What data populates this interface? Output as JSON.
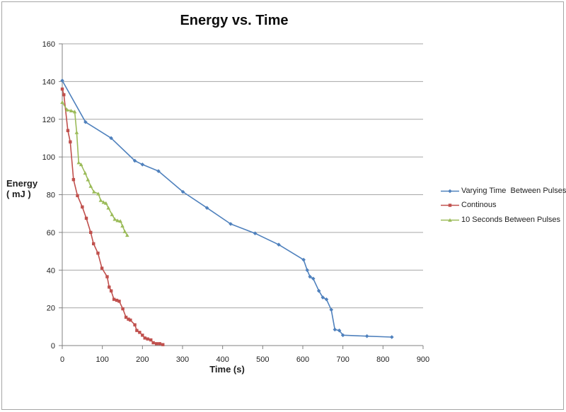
{
  "chart_data": {
    "type": "line",
    "title": "Energy vs. Time",
    "xlabel": "Time (s)",
    "ylabel": "Energy ( mJ )",
    "ylabel_lines": [
      "Energy",
      "( mJ )"
    ],
    "xlim": [
      0,
      900
    ],
    "ylim": [
      0,
      160
    ],
    "xticks": [
      0,
      100,
      200,
      300,
      400,
      500,
      600,
      700,
      800,
      900
    ],
    "yticks": [
      0,
      20,
      40,
      60,
      80,
      100,
      120,
      140,
      160
    ],
    "grid": "horizontal",
    "grid_color": "#A6A6A6",
    "axis_color": "#808080",
    "background": "#FFFFFF",
    "legend_position": "right",
    "series": [
      {
        "name": "Varying Time  Between Pulses",
        "color": "#4F81BD",
        "marker": "diamond",
        "points": [
          [
            0,
            140.5
          ],
          [
            58,
            118.5
          ],
          [
            122,
            110
          ],
          [
            181,
            98
          ],
          [
            200,
            96
          ],
          [
            240,
            92.5
          ],
          [
            301,
            81.5
          ],
          [
            361,
            73
          ],
          [
            420,
            64.5
          ],
          [
            481,
            59.5
          ],
          [
            540,
            53.5
          ],
          [
            602,
            45.5
          ],
          [
            611,
            40
          ],
          [
            618,
            36.5
          ],
          [
            626,
            35.5
          ],
          [
            640,
            29
          ],
          [
            650,
            25.5
          ],
          [
            659,
            24.5
          ],
          [
            671,
            19
          ],
          [
            680,
            8.5
          ],
          [
            691,
            8
          ],
          [
            700,
            5.5
          ],
          [
            760,
            5
          ],
          [
            822,
            4.5
          ]
        ]
      },
      {
        "name": "Continous",
        "color": "#C0504D",
        "marker": "square",
        "points": [
          [
            0,
            136
          ],
          [
            4,
            133
          ],
          [
            14,
            114
          ],
          [
            20,
            108
          ],
          [
            28,
            88
          ],
          [
            38,
            79.5
          ],
          [
            50,
            73.5
          ],
          [
            60,
            67.5
          ],
          [
            71,
            60
          ],
          [
            78,
            54
          ],
          [
            89,
            49
          ],
          [
            99,
            41
          ],
          [
            112,
            36.5
          ],
          [
            117,
            31
          ],
          [
            122,
            29
          ],
          [
            129,
            24.5
          ],
          [
            136,
            24
          ],
          [
            142,
            23.5
          ],
          [
            151,
            19.5
          ],
          [
            159,
            15
          ],
          [
            165,
            14
          ],
          [
            170,
            13.5
          ],
          [
            181,
            11
          ],
          [
            186,
            8
          ],
          [
            193,
            7
          ],
          [
            200,
            5.5
          ],
          [
            206,
            4
          ],
          [
            213,
            3.5
          ],
          [
            221,
            3
          ],
          [
            227,
            1.5
          ],
          [
            235,
            1
          ],
          [
            243,
            1
          ],
          [
            251,
            0.5
          ]
        ]
      },
      {
        "name": "10 Seconds Between Pulses",
        "color": "#9BBB59",
        "marker": "triangle",
        "points": [
          [
            0,
            129
          ],
          [
            12,
            125
          ],
          [
            22,
            124.5
          ],
          [
            31,
            124
          ],
          [
            36,
            113
          ],
          [
            41,
            97
          ],
          [
            47,
            96
          ],
          [
            57,
            91.5
          ],
          [
            64,
            88
          ],
          [
            71,
            84.5
          ],
          [
            79,
            81.5
          ],
          [
            90,
            80.5
          ],
          [
            96,
            77
          ],
          [
            103,
            76
          ],
          [
            109,
            75.5
          ],
          [
            115,
            73
          ],
          [
            124,
            69.5
          ],
          [
            131,
            67
          ],
          [
            138,
            66.3
          ],
          [
            145,
            66
          ],
          [
            150,
            63.5
          ],
          [
            156,
            60.5
          ],
          [
            162,
            58.5
          ]
        ]
      }
    ]
  }
}
